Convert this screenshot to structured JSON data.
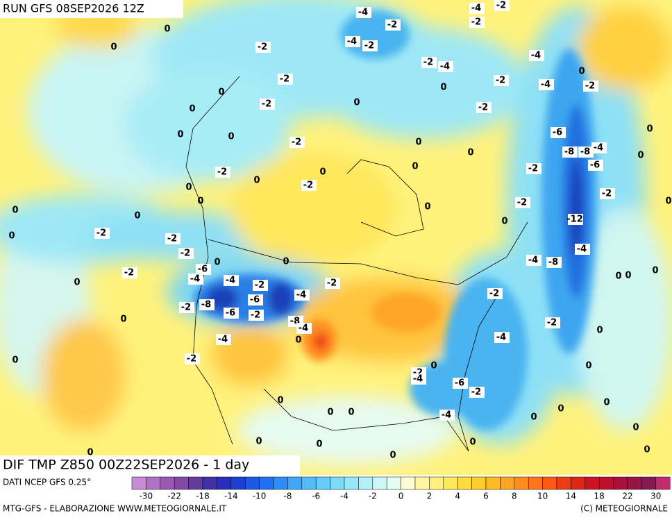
{
  "header": {
    "run": "RUN GFS 08SEP2026 12Z"
  },
  "map": {
    "title": "DIF TMP Z850 00Z22SEP2026 - 1 day",
    "contour_labels": [
      -4,
      -4,
      -2,
      0,
      -2,
      -2,
      -4,
      -2,
      0,
      -2,
      -4,
      -2,
      -4,
      -2,
      -2,
      0,
      -4,
      -2,
      0,
      0,
      -2,
      0,
      -2,
      0,
      0,
      0,
      -2,
      -6,
      0,
      0,
      0,
      -8,
      -8,
      -4,
      0,
      0,
      -2,
      0,
      -2,
      -6,
      0,
      -2,
      0,
      -2,
      0,
      0,
      0,
      -2,
      0,
      0,
      -12,
      -2,
      0,
      -2,
      0,
      0,
      -2,
      -4,
      0,
      0,
      -4,
      -8,
      -2,
      -6,
      -4,
      -4,
      -2,
      -2,
      0,
      0,
      0,
      0,
      -4,
      -6,
      -2,
      -8,
      -2,
      -6,
      -2,
      0,
      -8,
      -4,
      -2,
      0,
      -4,
      0,
      -4,
      0,
      -2,
      0,
      -2,
      -4,
      0,
      -6,
      -2,
      0,
      0,
      0,
      0,
      0,
      -4,
      0,
      0,
      0,
      0,
      0,
      0,
      0
    ]
  },
  "colorbar": {
    "ticks": [
      -30,
      -22,
      -18,
      -14,
      -10,
      -8,
      -6,
      -4,
      -2,
      0,
      2,
      4,
      6,
      8,
      10,
      14,
      18,
      22,
      30
    ],
    "colors": [
      "#c78ad6",
      "#b070c4",
      "#9a58b2",
      "#7f4aa0",
      "#603c98",
      "#4030a8",
      "#2a2cc0",
      "#1c40d4",
      "#1a58e6",
      "#2270f2",
      "#2e8cf6",
      "#3ea6f8",
      "#50bcf8",
      "#64cef8",
      "#7cdcf8",
      "#94e8f8",
      "#b2f0f8",
      "#cdf6f6",
      "#e4fbf4",
      "#fffcd2",
      "#fff6a4",
      "#fff07c",
      "#ffe85a",
      "#ffdc3a",
      "#ffcc28",
      "#ffba22",
      "#ffa41e",
      "#ff8c1c",
      "#ff7418",
      "#fa5814",
      "#ee3c12",
      "#de2414",
      "#cc1420",
      "#bc102c",
      "#aa1038",
      "#981444",
      "#88184e",
      "#c02c6c"
    ]
  },
  "footer": {
    "source": "DATI NCEP GFS 0.25°",
    "credit": "MTG-GFS - ELABORAZIONE WWW.METEOGIORNALE.IT",
    "copyright": "(C) METEOGIORNALE"
  }
}
